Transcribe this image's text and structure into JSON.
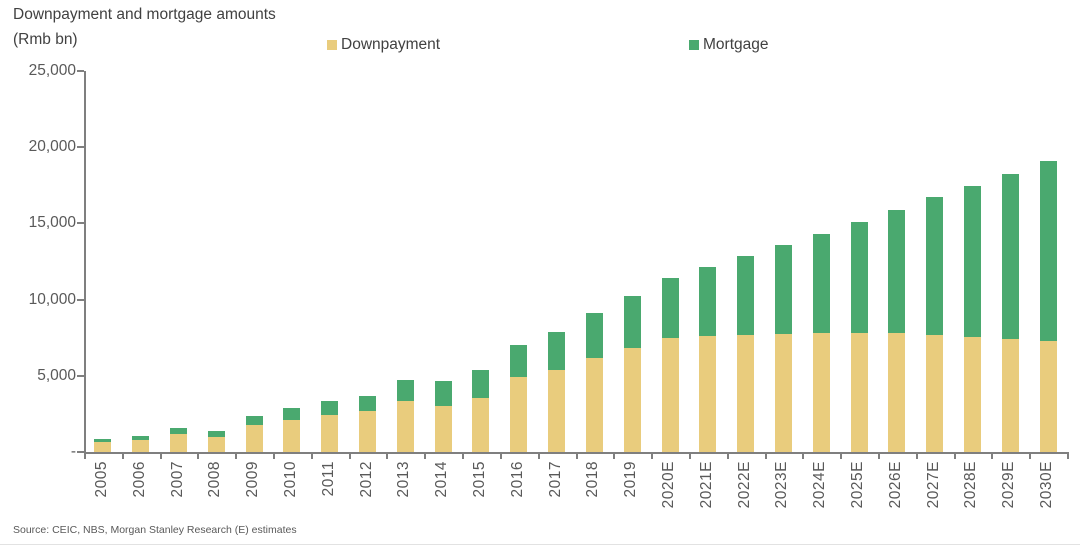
{
  "header": {
    "title": "Downpayment and mortgage amounts",
    "subtitle": "(Rmb bn)"
  },
  "legend": [
    {
      "label": "Downpayment",
      "color": "#e9cc7d"
    },
    {
      "label": "Mortgage",
      "color": "#4aa96f"
    }
  ],
  "source": "Source: CEIC, NBS, Morgan Stanley Research (E) estimates",
  "colors": {
    "downpayment": "#e9cc7d",
    "mortgage": "#4aa96f",
    "axis": "#7f7f7f",
    "label_text": "#595959",
    "title_text": "#414141"
  },
  "chart_data": {
    "type": "bar",
    "stacked": true,
    "title": "Downpayment and mortgage amounts",
    "ylabel": "(Rmb bn)",
    "xlabel": "",
    "ylim": [
      0,
      25000
    ],
    "grid": false,
    "legend_position": "top",
    "categories": [
      "2005",
      "2006",
      "2007",
      "2008",
      "2009",
      "2010",
      "2011",
      "2012",
      "2013",
      "2014",
      "2015",
      "2016",
      "2017",
      "2018",
      "2019",
      "2020E",
      "2021E",
      "2022E",
      "2023E",
      "2024E",
      "2025E",
      "2026E",
      "2027E",
      "2028E",
      "2029E",
      "2030E"
    ],
    "series": [
      {
        "name": "Downpayment",
        "color": "#e9cc7d",
        "values": [
          650,
          800,
          1150,
          1000,
          1800,
          2100,
          2450,
          2700,
          3350,
          3050,
          3550,
          4900,
          5400,
          6200,
          6850,
          7450,
          7600,
          7650,
          7750,
          7800,
          7800,
          7800,
          7700,
          7550,
          7400,
          7300
        ]
      },
      {
        "name": "Mortgage",
        "color": "#4aa96f",
        "values": [
          200,
          270,
          420,
          370,
          550,
          780,
          870,
          1000,
          1370,
          1600,
          1850,
          2150,
          2500,
          2950,
          3400,
          3950,
          4550,
          5200,
          5850,
          6500,
          7300,
          8100,
          9000,
          9900,
          10850,
          11800
        ]
      }
    ],
    "y_ticks": [
      {
        "value": 0,
        "label": "-"
      },
      {
        "value": 5000,
        "label": "5,000"
      },
      {
        "value": 10000,
        "label": "10,000"
      },
      {
        "value": 15000,
        "label": "15,000"
      },
      {
        "value": 20000,
        "label": "20,000"
      },
      {
        "value": 25000,
        "label": "25,000"
      }
    ]
  }
}
